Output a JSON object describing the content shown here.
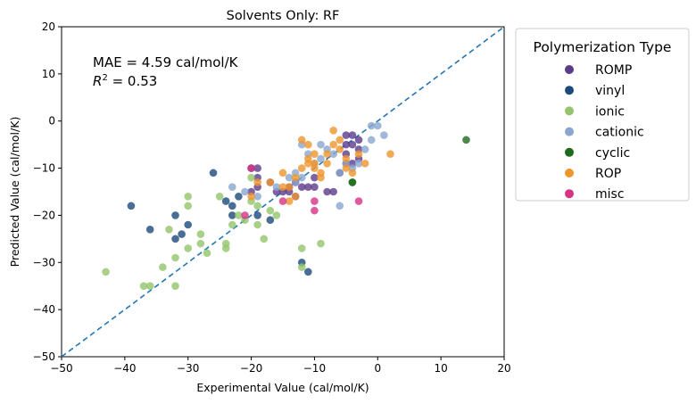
{
  "chart_data": {
    "type": "scatter",
    "title": "Solvents Only: RF",
    "xlabel": "Experimental Value (cal/mol/K)",
    "ylabel": "Predicted Value (cal/mol/K)",
    "xlim": [
      -50,
      20
    ],
    "ylim": [
      -50,
      20
    ],
    "xticks": [
      -50,
      -40,
      -30,
      -20,
      -10,
      0,
      10,
      20
    ],
    "yticks": [
      -50,
      -40,
      -30,
      -20,
      -10,
      0,
      10,
      20
    ],
    "grid": false,
    "legend_title": "Polymerization Type",
    "legend_position": "outside-upper-right",
    "annotation": {
      "mae": "MAE = 4.59 cal/mol/K",
      "r2_label": "R",
      "r2_sup": "2",
      "r2_value": " = 0.53"
    },
    "reference_line": {
      "style": "dashed",
      "color": "#1f77b4",
      "from": [
        -50,
        -50
      ],
      "to": [
        20,
        20
      ]
    },
    "series": [
      {
        "name": "ROMP",
        "color": "#5b3a8c",
        "points": [
          [
            -20,
            -10
          ],
          [
            -19,
            -10
          ],
          [
            -19,
            -12
          ],
          [
            -19,
            -14
          ],
          [
            -20,
            -15
          ],
          [
            -17,
            -13
          ],
          [
            -16,
            -15
          ],
          [
            -15,
            -15
          ],
          [
            -14,
            -14
          ],
          [
            -14,
            -15
          ],
          [
            -13,
            -13
          ],
          [
            -12,
            -14
          ],
          [
            -13,
            -16
          ],
          [
            -11,
            -14
          ],
          [
            -10,
            -14
          ],
          [
            -10,
            -12
          ],
          [
            -8,
            -15
          ],
          [
            -7,
            -15
          ],
          [
            -6,
            -11
          ],
          [
            -5,
            -9
          ],
          [
            -5,
            -7
          ],
          [
            -5,
            -5
          ],
          [
            -4,
            -5
          ],
          [
            -4,
            -3
          ],
          [
            -3,
            -4
          ],
          [
            -3,
            -6
          ],
          [
            -3,
            -8
          ],
          [
            -4,
            -9
          ],
          [
            -5,
            -3
          ]
        ]
      },
      {
        "name": "vinyl",
        "color": "#1c4a7a",
        "points": [
          [
            -39,
            -18
          ],
          [
            -36,
            -23
          ],
          [
            -32,
            -20
          ],
          [
            -32,
            -25
          ],
          [
            -31,
            -24
          ],
          [
            -30,
            -22
          ],
          [
            -26,
            -11
          ],
          [
            -24,
            -17
          ],
          [
            -23,
            -20
          ],
          [
            -23,
            -18
          ],
          [
            -22,
            -16
          ],
          [
            -19,
            -20
          ],
          [
            -17,
            -21
          ],
          [
            -12,
            -30
          ],
          [
            -11,
            -32
          ]
        ]
      },
      {
        "name": "ionic",
        "color": "#93c46c",
        "points": [
          [
            -43,
            -32
          ],
          [
            -37,
            -35
          ],
          [
            -36,
            -35
          ],
          [
            -34,
            -31
          ],
          [
            -33,
            -23
          ],
          [
            -32,
            -35
          ],
          [
            -32,
            -29
          ],
          [
            -30,
            -16
          ],
          [
            -30,
            -18
          ],
          [
            -30,
            -27
          ],
          [
            -28,
            -24
          ],
          [
            -28,
            -26
          ],
          [
            -27,
            -28
          ],
          [
            -25,
            -16
          ],
          [
            -24,
            -27
          ],
          [
            -24,
            -26
          ],
          [
            -23,
            -22
          ],
          [
            -22,
            -20
          ],
          [
            -21,
            -21
          ],
          [
            -20,
            -17
          ],
          [
            -20,
            -12
          ],
          [
            -19,
            -22
          ],
          [
            -19,
            -18
          ],
          [
            -18,
            -25
          ],
          [
            -17,
            -19
          ],
          [
            -16,
            -20
          ],
          [
            -12,
            -31
          ],
          [
            -12,
            -27
          ],
          [
            -9,
            -26
          ]
        ]
      },
      {
        "name": "cationic",
        "color": "#88a6cf",
        "points": [
          [
            -23,
            -14
          ],
          [
            -21,
            -15
          ],
          [
            -19,
            -16
          ],
          [
            -16,
            -14
          ],
          [
            -14,
            -12
          ],
          [
            -13,
            -11
          ],
          [
            -13,
            -13
          ],
          [
            -12,
            -12
          ],
          [
            -12,
            -5
          ],
          [
            -11,
            -7
          ],
          [
            -10,
            -9
          ],
          [
            -9,
            -8
          ],
          [
            -9,
            -5
          ],
          [
            -8,
            -6
          ],
          [
            -7,
            -7
          ],
          [
            -6,
            -11
          ],
          [
            -6,
            -18
          ],
          [
            -5,
            -9
          ],
          [
            -4,
            -10
          ],
          [
            -3,
            -9
          ],
          [
            -2,
            -6
          ],
          [
            -1,
            -4
          ],
          [
            -1,
            -1
          ],
          [
            0,
            -1
          ],
          [
            1,
            -3
          ]
        ]
      },
      {
        "name": "cyclic",
        "color": "#1e6b1e",
        "points": [
          [
            14,
            -4
          ],
          [
            -4,
            -13
          ],
          [
            -4,
            -13
          ]
        ]
      },
      {
        "name": "ROP",
        "color": "#f0952c",
        "points": [
          [
            -20,
            -16
          ],
          [
            -19,
            -13
          ],
          [
            -17,
            -13
          ],
          [
            -15,
            -11
          ],
          [
            -15,
            -14
          ],
          [
            -14,
            -14
          ],
          [
            -14,
            -17
          ],
          [
            -13,
            -16
          ],
          [
            -13,
            -12
          ],
          [
            -12,
            -10
          ],
          [
            -12,
            -4
          ],
          [
            -11,
            -5
          ],
          [
            -11,
            -8
          ],
          [
            -11,
            -9
          ],
          [
            -10,
            -10
          ],
          [
            -10,
            -7
          ],
          [
            -10,
            -9
          ],
          [
            -9,
            -11
          ],
          [
            -9,
            -12
          ],
          [
            -8,
            -9
          ],
          [
            -8,
            -7
          ],
          [
            -7,
            -2
          ],
          [
            -7,
            -5
          ],
          [
            -6,
            -4
          ],
          [
            -6,
            -6
          ],
          [
            -5,
            -8
          ],
          [
            -5,
            -10
          ],
          [
            -4,
            -11
          ],
          [
            -3,
            -7
          ],
          [
            -2,
            -9
          ],
          [
            2,
            -7
          ]
        ]
      },
      {
        "name": "misc",
        "color": "#d63384",
        "points": [
          [
            -20,
            -10
          ],
          [
            -21,
            -20
          ],
          [
            -15,
            -17
          ],
          [
            -10,
            -17
          ],
          [
            -10,
            -19
          ],
          [
            -3,
            -17
          ]
        ]
      }
    ]
  }
}
